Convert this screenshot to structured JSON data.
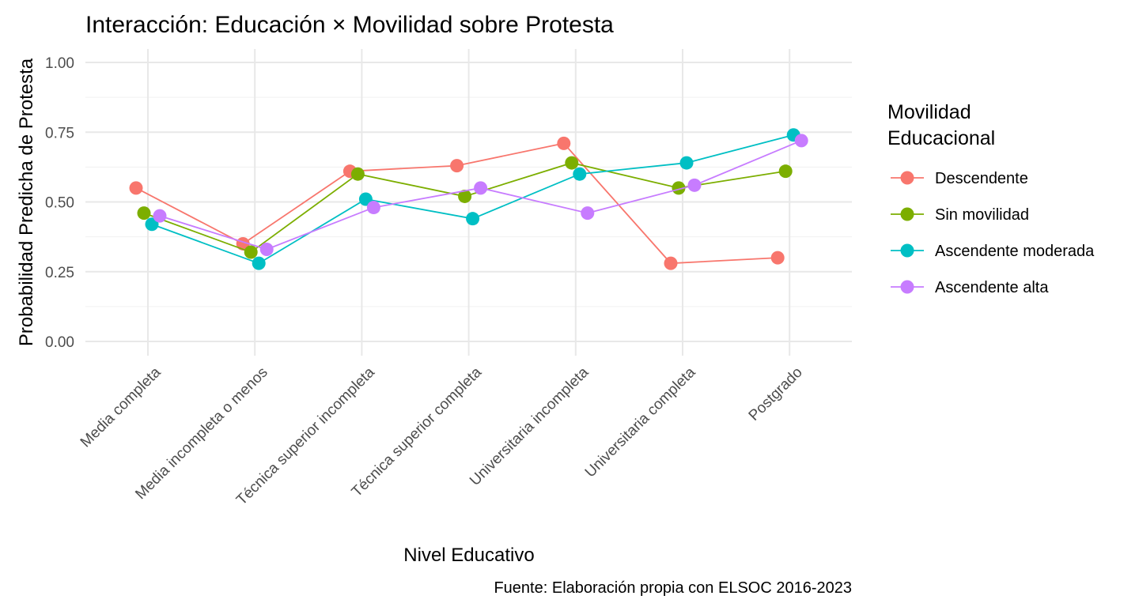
{
  "chart_data": {
    "type": "line",
    "title": "Interacción: Educación × Movilidad sobre Protesta",
    "xlabel": "Nivel Educativo",
    "ylabel": "Probabilidad Predicha de Protesta",
    "caption": "Fuente: Elaboración propia con ELSOC 2016-2023",
    "legend_title": [
      "Movilidad",
      "Educacional"
    ],
    "legend_position": "right",
    "grid": true,
    "ylim": [
      0,
      1
    ],
    "yticks": [
      0.0,
      0.25,
      0.5,
      0.75,
      1.0
    ],
    "ytick_labels": [
      "0.00",
      "0.25",
      "0.50",
      "0.75",
      "1.00"
    ],
    "categories": [
      "Media completa",
      "Media incompleta o menos",
      "Técnica superior incompleta",
      "Técnica superior completa",
      "Universitaria incompleta",
      "Universitaria completa",
      "Postgrado"
    ],
    "series": [
      {
        "name": "Descendente",
        "color": "#F8766D",
        "values": [
          0.55,
          0.35,
          0.61,
          0.63,
          0.71,
          0.28,
          0.3
        ]
      },
      {
        "name": "Sin movilidad",
        "color": "#7CAE00",
        "values": [
          0.46,
          0.32,
          0.6,
          0.52,
          0.64,
          0.55,
          0.61
        ]
      },
      {
        "name": "Ascendente moderada",
        "color": "#00BFC4",
        "values": [
          0.42,
          0.28,
          0.51,
          0.44,
          0.6,
          0.64,
          0.74
        ]
      },
      {
        "name": "Ascendente alta",
        "color": "#C77CFF",
        "values": [
          0.45,
          0.33,
          0.48,
          0.55,
          0.46,
          0.56,
          0.72
        ]
      }
    ]
  }
}
